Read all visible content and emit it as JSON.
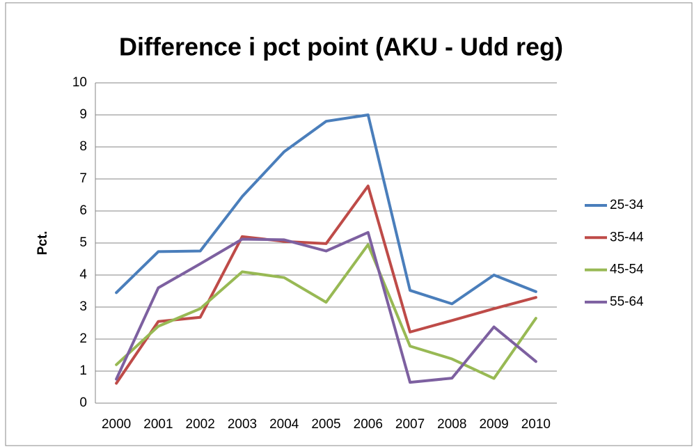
{
  "chart_data": {
    "type": "line",
    "title": "Difference i pct point (AKU - Udd reg)",
    "y_label": "Pct.",
    "categories": [
      "2000",
      "2001",
      "2002",
      "2003",
      "2004",
      "2005",
      "2006",
      "2007",
      "2008",
      "2009",
      "2010"
    ],
    "series": [
      {
        "name": "25-34",
        "color": "#4a7ebb",
        "values": [
          3.45,
          4.73,
          4.75,
          6.45,
          7.85,
          8.8,
          9.0,
          3.52,
          3.1,
          4.0,
          3.48
        ]
      },
      {
        "name": "35-44",
        "color": "#be4b48",
        "values": [
          0.62,
          2.55,
          2.68,
          5.2,
          5.05,
          4.98,
          6.78,
          2.22,
          2.58,
          2.95,
          3.3
        ]
      },
      {
        "name": "45-54",
        "color": "#98b954",
        "values": [
          1.2,
          2.4,
          2.95,
          4.1,
          3.92,
          3.15,
          4.95,
          1.78,
          1.38,
          0.77,
          2.65
        ]
      },
      {
        "name": "55-64",
        "color": "#7d60a0",
        "values": [
          0.75,
          3.6,
          4.35,
          5.12,
          5.1,
          4.75,
          5.33,
          0.65,
          0.78,
          2.38,
          1.3
        ]
      }
    ],
    "ylim": [
      0,
      10
    ],
    "yticks": [
      0,
      1,
      2,
      3,
      4,
      5,
      6,
      7,
      8,
      9,
      10
    ],
    "grid": true,
    "legend": "right"
  }
}
